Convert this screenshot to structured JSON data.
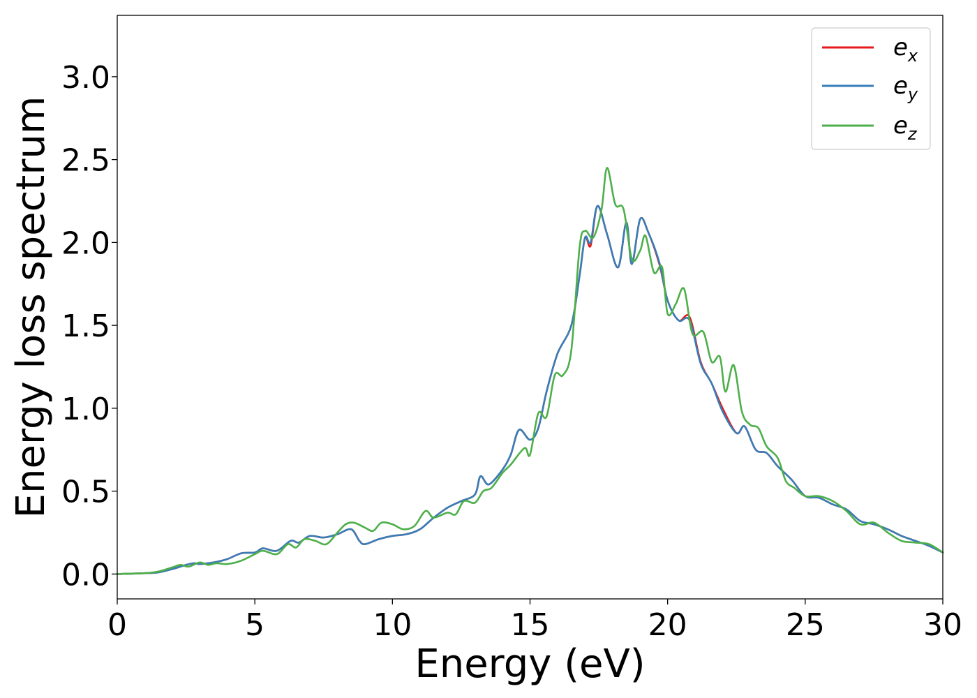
{
  "chart_data": {
    "type": "line",
    "xlabel": "Energy (eV)",
    "ylabel": "Energy loss spectrum",
    "xlim": [
      0,
      30
    ],
    "ylim": [
      -0.15,
      3.37
    ],
    "xticks": [
      0,
      5,
      10,
      15,
      20,
      25,
      30
    ],
    "xtick_labels": [
      "0",
      "5",
      "10",
      "15",
      "20",
      "25",
      "30"
    ],
    "yticks": [
      0.0,
      0.5,
      1.0,
      1.5,
      2.0,
      2.5,
      3.0
    ],
    "ytick_labels": [
      "0.0",
      "0.5",
      "1.0",
      "1.5",
      "2.0",
      "2.5",
      "3.0"
    ],
    "grid": false,
    "legend_position": "top-right",
    "series": [
      {
        "name": "e_x",
        "label_base": "e",
        "label_sub": "x",
        "color": "#e41a1c",
        "points": [
          [
            0,
            0
          ],
          [
            1,
            0.005
          ],
          [
            1.5,
            0.01
          ],
          [
            2,
            0.03
          ],
          [
            2.5,
            0.055
          ],
          [
            2.8,
            0.065
          ],
          [
            3,
            0.06
          ],
          [
            3.5,
            0.07
          ],
          [
            4,
            0.09
          ],
          [
            4.5,
            0.125
          ],
          [
            5,
            0.13
          ],
          [
            5.3,
            0.155
          ],
          [
            5.8,
            0.14
          ],
          [
            6.3,
            0.2
          ],
          [
            6.6,
            0.19
          ],
          [
            7,
            0.23
          ],
          [
            7.5,
            0.22
          ],
          [
            8,
            0.24
          ],
          [
            8.5,
            0.27
          ],
          [
            8.8,
            0.2
          ],
          [
            9,
            0.18
          ],
          [
            9.5,
            0.21
          ],
          [
            10,
            0.23
          ],
          [
            10.5,
            0.24
          ],
          [
            11,
            0.27
          ],
          [
            11.5,
            0.34
          ],
          [
            12,
            0.4
          ],
          [
            12.5,
            0.44
          ],
          [
            13,
            0.48
          ],
          [
            13.2,
            0.59
          ],
          [
            13.5,
            0.54
          ],
          [
            14,
            0.63
          ],
          [
            14.3,
            0.72
          ],
          [
            14.6,
            0.87
          ],
          [
            15,
            0.81
          ],
          [
            15.3,
            0.88
          ],
          [
            15.6,
            1.1
          ],
          [
            16,
            1.33
          ],
          [
            16.5,
            1.5
          ],
          [
            16.8,
            1.8
          ],
          [
            17,
            2.03
          ],
          [
            17.2,
            1.98
          ],
          [
            17.45,
            2.22
          ],
          [
            17.8,
            2.05
          ],
          [
            18.2,
            1.85
          ],
          [
            18.5,
            2.12
          ],
          [
            18.7,
            1.87
          ],
          [
            19,
            2.14
          ],
          [
            19.3,
            2.06
          ],
          [
            19.7,
            1.87
          ],
          [
            20,
            1.65
          ],
          [
            20.4,
            1.53
          ],
          [
            20.8,
            1.55
          ],
          [
            21.2,
            1.28
          ],
          [
            21.6,
            1.15
          ],
          [
            22,
            1.0
          ],
          [
            22.5,
            0.85
          ],
          [
            22.8,
            0.89
          ],
          [
            23.2,
            0.75
          ],
          [
            23.6,
            0.73
          ],
          [
            24,
            0.65
          ],
          [
            24.5,
            0.57
          ],
          [
            25,
            0.47
          ],
          [
            25.5,
            0.46
          ],
          [
            26,
            0.42
          ],
          [
            26.5,
            0.39
          ],
          [
            27,
            0.32
          ],
          [
            27.5,
            0.3
          ],
          [
            28,
            0.27
          ],
          [
            28.5,
            0.23
          ],
          [
            29,
            0.2
          ],
          [
            29.5,
            0.17
          ],
          [
            30,
            0.13
          ]
        ]
      },
      {
        "name": "e_y",
        "label_base": "e",
        "label_sub": "y",
        "color": "#377eb8",
        "points": [
          [
            0,
            0
          ],
          [
            1,
            0.005
          ],
          [
            1.5,
            0.01
          ],
          [
            2,
            0.03
          ],
          [
            2.5,
            0.055
          ],
          [
            2.8,
            0.065
          ],
          [
            3,
            0.06
          ],
          [
            3.5,
            0.07
          ],
          [
            4,
            0.09
          ],
          [
            4.5,
            0.125
          ],
          [
            5,
            0.13
          ],
          [
            5.3,
            0.155
          ],
          [
            5.8,
            0.14
          ],
          [
            6.3,
            0.2
          ],
          [
            6.6,
            0.19
          ],
          [
            7,
            0.23
          ],
          [
            7.5,
            0.22
          ],
          [
            8,
            0.24
          ],
          [
            8.5,
            0.27
          ],
          [
            8.8,
            0.2
          ],
          [
            9,
            0.18
          ],
          [
            9.5,
            0.21
          ],
          [
            10,
            0.23
          ],
          [
            10.5,
            0.24
          ],
          [
            11,
            0.27
          ],
          [
            11.5,
            0.34
          ],
          [
            12,
            0.4
          ],
          [
            12.5,
            0.44
          ],
          [
            13,
            0.48
          ],
          [
            13.2,
            0.59
          ],
          [
            13.5,
            0.54
          ],
          [
            14,
            0.63
          ],
          [
            14.3,
            0.72
          ],
          [
            14.6,
            0.87
          ],
          [
            15,
            0.81
          ],
          [
            15.3,
            0.88
          ],
          [
            15.6,
            1.1
          ],
          [
            16,
            1.33
          ],
          [
            16.5,
            1.5
          ],
          [
            16.8,
            1.8
          ],
          [
            17,
            2.03
          ],
          [
            17.2,
            2.0
          ],
          [
            17.45,
            2.22
          ],
          [
            17.8,
            2.05
          ],
          [
            18.2,
            1.85
          ],
          [
            18.5,
            2.12
          ],
          [
            18.7,
            1.87
          ],
          [
            19,
            2.14
          ],
          [
            19.3,
            2.06
          ],
          [
            19.7,
            1.88
          ],
          [
            20,
            1.65
          ],
          [
            20.4,
            1.53
          ],
          [
            20.8,
            1.53
          ],
          [
            21.2,
            1.27
          ],
          [
            21.6,
            1.15
          ],
          [
            22,
            0.98
          ],
          [
            22.5,
            0.85
          ],
          [
            22.8,
            0.89
          ],
          [
            23.2,
            0.75
          ],
          [
            23.6,
            0.73
          ],
          [
            24,
            0.65
          ],
          [
            24.5,
            0.57
          ],
          [
            25,
            0.47
          ],
          [
            25.5,
            0.46
          ],
          [
            26,
            0.42
          ],
          [
            26.5,
            0.39
          ],
          [
            27,
            0.32
          ],
          [
            27.5,
            0.3
          ],
          [
            28,
            0.27
          ],
          [
            28.5,
            0.23
          ],
          [
            29,
            0.2
          ],
          [
            29.5,
            0.17
          ],
          [
            30,
            0.13
          ]
        ]
      },
      {
        "name": "e_z",
        "label_base": "e",
        "label_sub": "z",
        "color": "#4daf4a",
        "points": [
          [
            0,
            0
          ],
          [
            1,
            0.005
          ],
          [
            1.5,
            0.015
          ],
          [
            2,
            0.04
          ],
          [
            2.3,
            0.055
          ],
          [
            2.6,
            0.045
          ],
          [
            3,
            0.07
          ],
          [
            3.3,
            0.055
          ],
          [
            3.6,
            0.065
          ],
          [
            4,
            0.06
          ],
          [
            4.5,
            0.08
          ],
          [
            5,
            0.12
          ],
          [
            5.3,
            0.14
          ],
          [
            5.8,
            0.12
          ],
          [
            6.2,
            0.18
          ],
          [
            6.5,
            0.16
          ],
          [
            6.8,
            0.21
          ],
          [
            7.2,
            0.2
          ],
          [
            7.6,
            0.18
          ],
          [
            8,
            0.25
          ],
          [
            8.3,
            0.3
          ],
          [
            8.6,
            0.31
          ],
          [
            9,
            0.28
          ],
          [
            9.3,
            0.26
          ],
          [
            9.6,
            0.31
          ],
          [
            10,
            0.3
          ],
          [
            10.4,
            0.27
          ],
          [
            10.8,
            0.29
          ],
          [
            11.2,
            0.38
          ],
          [
            11.5,
            0.34
          ],
          [
            12,
            0.37
          ],
          [
            12.3,
            0.36
          ],
          [
            12.6,
            0.44
          ],
          [
            13,
            0.43
          ],
          [
            13.3,
            0.5
          ],
          [
            13.6,
            0.52
          ],
          [
            14,
            0.61
          ],
          [
            14.3,
            0.66
          ],
          [
            14.8,
            0.76
          ],
          [
            15,
            0.72
          ],
          [
            15.3,
            0.97
          ],
          [
            15.6,
            0.95
          ],
          [
            15.9,
            1.2
          ],
          [
            16.2,
            1.2
          ],
          [
            16.5,
            1.35
          ],
          [
            16.8,
            1.97
          ],
          [
            17,
            2.07
          ],
          [
            17.3,
            2.03
          ],
          [
            17.6,
            2.2
          ],
          [
            17.8,
            2.45
          ],
          [
            18.1,
            2.23
          ],
          [
            18.4,
            2.2
          ],
          [
            18.7,
            1.9
          ],
          [
            19,
            1.95
          ],
          [
            19.2,
            2.04
          ],
          [
            19.5,
            1.82
          ],
          [
            19.8,
            1.85
          ],
          [
            20,
            1.57
          ],
          [
            20.3,
            1.63
          ],
          [
            20.6,
            1.72
          ],
          [
            20.9,
            1.45
          ],
          [
            21.3,
            1.46
          ],
          [
            21.6,
            1.28
          ],
          [
            21.9,
            1.31
          ],
          [
            22.1,
            1.1
          ],
          [
            22.4,
            1.26
          ],
          [
            22.7,
            0.98
          ],
          [
            23,
            0.9
          ],
          [
            23.3,
            0.88
          ],
          [
            23.6,
            0.77
          ],
          [
            24,
            0.7
          ],
          [
            24.3,
            0.56
          ],
          [
            24.6,
            0.52
          ],
          [
            25,
            0.47
          ],
          [
            25.5,
            0.47
          ],
          [
            26,
            0.44
          ],
          [
            26.5,
            0.38
          ],
          [
            27,
            0.3
          ],
          [
            27.5,
            0.31
          ],
          [
            28,
            0.25
          ],
          [
            28.5,
            0.2
          ],
          [
            29,
            0.19
          ],
          [
            29.5,
            0.18
          ],
          [
            30,
            0.13
          ]
        ]
      }
    ]
  }
}
